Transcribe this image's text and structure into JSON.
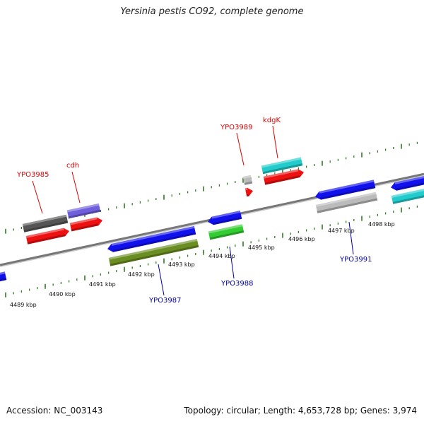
{
  "title": "Yersinia pestis CO92, complete genome",
  "footer": {
    "accession": "Accession: NC_003143",
    "summary": "Topology: circular; Length: 4,653,728 bp; Genes: 3,974"
  },
  "scale_labels": [
    "4489 kbp",
    "4490 kbp",
    "4491 kbp",
    "4492 kbp",
    "4493 kbp",
    "4494 kbp",
    "4495 kbp",
    "4496 kbp",
    "4497 kbp",
    "4498 kbp"
  ],
  "gene_labels": {
    "top": [
      "YPO3985",
      "cdh",
      "YPO3989",
      "kdgK"
    ],
    "bottom": [
      "YPO3987",
      "YPO3988",
      "YPO3991"
    ]
  },
  "colors": {
    "backbone": "#777777",
    "tick": "#2e7d1e",
    "label_top": "#dd0000",
    "label_bottom": "#0000aa",
    "blue": "#1111ee",
    "red": "#ee1111",
    "dark_gray": "#555555",
    "light_gray": "#bbbbbb",
    "purple": "#6f5fdc",
    "green": "#33cc33",
    "olive": "#6b8e23",
    "cyan": "#22cccc"
  }
}
